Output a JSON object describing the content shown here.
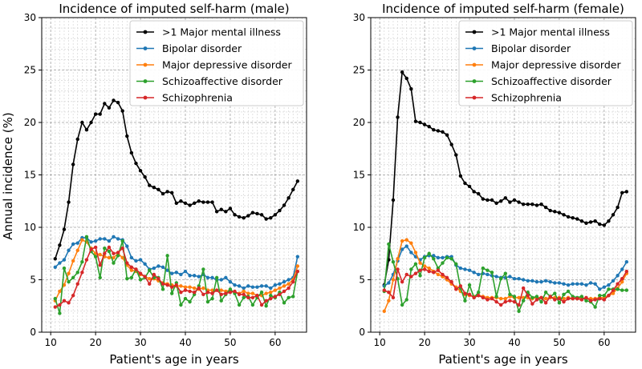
{
  "figure": {
    "ylabel": "Annual incidence (%)"
  },
  "chart_data": [
    {
      "type": "line",
      "title": "Incidence of imputed self-harm (male)",
      "xlabel": "Patient's age in years",
      "ylabel": "Annual incidence (%)",
      "xlim": [
        8,
        67
      ],
      "ylim": [
        0,
        30
      ],
      "xticks": [
        10,
        20,
        30,
        40,
        50,
        60
      ],
      "yticks": [
        0,
        5,
        10,
        15,
        20,
        25,
        30
      ],
      "grid": "major and minor, dashed",
      "legend": "top-right",
      "x": [
        11,
        12,
        13,
        14,
        15,
        16,
        17,
        18,
        19,
        20,
        21,
        22,
        23,
        24,
        25,
        26,
        27,
        28,
        29,
        30,
        31,
        32,
        33,
        34,
        35,
        36,
        37,
        38,
        39,
        40,
        41,
        42,
        43,
        44,
        45,
        46,
        47,
        48,
        49,
        50,
        51,
        52,
        53,
        54,
        55,
        56,
        57,
        58,
        59,
        60,
        61,
        62,
        63,
        64,
        65
      ],
      "series": [
        {
          "name": ">1 Major mental illness",
          "color": "#000000",
          "values": [
            7.0,
            8.3,
            9.8,
            12.4,
            16.0,
            18.4,
            20.0,
            19.3,
            20.0,
            20.8,
            20.8,
            21.8,
            21.4,
            22.1,
            21.9,
            21.1,
            18.7,
            17.1,
            16.1,
            15.4,
            14.8,
            14.0,
            13.8,
            13.6,
            13.2,
            13.4,
            13.3,
            12.3,
            12.5,
            12.3,
            12.1,
            12.3,
            12.5,
            12.4,
            12.4,
            12.4,
            11.5,
            11.7,
            11.5,
            11.8,
            11.2,
            11.0,
            10.9,
            11.1,
            11.4,
            11.3,
            11.2,
            10.8,
            10.9,
            11.2,
            11.6,
            12.1,
            12.8,
            13.6,
            14.4
          ]
        },
        {
          "name": "Bipolar disorder",
          "color": "#1f77b4",
          "values": [
            6.2,
            6.6,
            6.9,
            7.8,
            8.4,
            8.5,
            9.0,
            9.0,
            8.6,
            8.7,
            8.9,
            8.9,
            8.7,
            9.1,
            8.9,
            8.8,
            8.2,
            7.1,
            6.8,
            6.9,
            6.5,
            6.0,
            6.1,
            6.3,
            6.2,
            5.9,
            5.6,
            5.7,
            5.5,
            5.8,
            5.4,
            5.4,
            5.3,
            5.5,
            5.2,
            5.2,
            5.0,
            5.0,
            5.2,
            4.8,
            4.5,
            4.4,
            4.2,
            4.4,
            4.3,
            4.3,
            4.4,
            4.4,
            4.2,
            4.5,
            4.6,
            4.8,
            5.0,
            5.2,
            7.2
          ]
        },
        {
          "name": "Major depressive disorder",
          "color": "#ff7f0e",
          "values": [
            3.0,
            3.9,
            4.5,
            5.6,
            6.8,
            7.8,
            8.8,
            8.6,
            8.0,
            7.5,
            7.4,
            7.2,
            7.1,
            7.1,
            7.5,
            7.1,
            6.4,
            5.9,
            5.8,
            5.5,
            5.3,
            5.1,
            5.1,
            4.9,
            4.7,
            4.6,
            4.5,
            4.4,
            4.4,
            4.3,
            4.3,
            4.2,
            4.1,
            4.2,
            4.0,
            4.0,
            4.0,
            4.0,
            3.9,
            4.0,
            3.8,
            3.7,
            3.9,
            3.7,
            3.7,
            3.5,
            3.5,
            3.7,
            3.8,
            4.0,
            4.2,
            4.4,
            4.6,
            5.0,
            6.3
          ]
        },
        {
          "name": "Schizoaffective disorder",
          "color": "#2ca02c",
          "values": [
            3.2,
            1.8,
            6.1,
            4.8,
            5.2,
            5.7,
            6.7,
            9.1,
            7.7,
            7.2,
            5.2,
            8.0,
            7.7,
            6.6,
            7.3,
            8.7,
            5.1,
            5.2,
            6.0,
            5.0,
            5.2,
            5.9,
            5.2,
            5.2,
            4.1,
            7.3,
            3.7,
            4.7,
            2.6,
            3.2,
            2.9,
            3.6,
            4.4,
            6.0,
            2.9,
            3.2,
            5.2,
            3.0,
            3.6,
            4.1,
            3.7,
            2.6,
            3.3,
            3.4,
            2.6,
            3.3,
            3.8,
            2.5,
            3.5,
            3.3,
            3.8,
            2.8,
            3.3,
            3.4,
            5.8
          ]
        },
        {
          "name": "Schizophrenia",
          "color": "#d62728",
          "values": [
            2.4,
            2.6,
            3.0,
            2.8,
            3.5,
            4.6,
            5.7,
            6.9,
            7.9,
            8.1,
            6.4,
            7.5,
            8.1,
            7.5,
            7.6,
            8.0,
            6.6,
            6.2,
            6.0,
            5.6,
            5.3,
            4.6,
            5.5,
            5.1,
            4.6,
            4.5,
            4.3,
            4.5,
            3.8,
            4.0,
            3.9,
            3.8,
            4.2,
            3.6,
            3.8,
            3.7,
            4.0,
            3.6,
            3.7,
            3.8,
            3.9,
            3.6,
            3.6,
            3.3,
            3.3,
            3.5,
            2.6,
            3.0,
            3.2,
            3.4,
            3.6,
            3.9,
            4.2,
            4.8,
            5.8
          ]
        }
      ]
    },
    {
      "type": "line",
      "title": "Incidence of imputed self-harm (female)",
      "xlabel": "Patient's age in years",
      "ylabel": "",
      "xlim": [
        8,
        67
      ],
      "ylim": [
        0,
        30
      ],
      "xticks": [
        10,
        20,
        30,
        40,
        50,
        60
      ],
      "yticks": [
        0,
        5,
        10,
        15,
        20,
        25,
        30
      ],
      "grid": "major and minor, dashed",
      "legend": "top-right",
      "x": [
        11,
        12,
        13,
        14,
        15,
        16,
        17,
        18,
        19,
        20,
        21,
        22,
        23,
        24,
        25,
        26,
        27,
        28,
        29,
        30,
        31,
        32,
        33,
        34,
        35,
        36,
        37,
        38,
        39,
        40,
        41,
        42,
        43,
        44,
        45,
        46,
        47,
        48,
        49,
        50,
        51,
        52,
        53,
        54,
        55,
        56,
        57,
        58,
        59,
        60,
        61,
        62,
        63,
        64,
        65
      ],
      "series": [
        {
          "name": ">1 Major mental illness",
          "color": "#000000",
          "values": [
            4.5,
            6.9,
            12.6,
            20.5,
            24.8,
            24.2,
            23.2,
            20.1,
            20.0,
            19.8,
            19.6,
            19.3,
            19.2,
            19.1,
            18.8,
            17.9,
            16.9,
            14.9,
            14.2,
            13.9,
            13.4,
            13.2,
            12.7,
            12.6,
            12.6,
            12.3,
            12.5,
            12.8,
            12.4,
            12.6,
            12.4,
            12.2,
            12.2,
            12.2,
            12.1,
            12.2,
            11.9,
            11.6,
            11.5,
            11.4,
            11.2,
            11.0,
            10.9,
            10.8,
            10.6,
            10.4,
            10.5,
            10.6,
            10.3,
            10.2,
            10.6,
            11.2,
            11.9,
            13.3,
            13.4
          ]
        },
        {
          "name": "Bipolar disorder",
          "color": "#1f77b4",
          "values": [
            4.4,
            4.7,
            5.5,
            6.8,
            7.9,
            8.2,
            7.6,
            7.2,
            6.9,
            7.2,
            7.3,
            7.3,
            7.1,
            7.1,
            7.2,
            7.2,
            6.4,
            6.1,
            6.0,
            5.9,
            5.7,
            5.5,
            5.6,
            5.5,
            5.4,
            5.3,
            5.2,
            5.2,
            5.3,
            5.1,
            5.1,
            5.0,
            4.9,
            4.9,
            4.8,
            4.8,
            4.9,
            4.8,
            4.7,
            4.7,
            4.6,
            4.5,
            4.6,
            4.6,
            4.6,
            4.5,
            4.7,
            4.6,
            4.1,
            4.3,
            4.5,
            4.9,
            5.4,
            6.0,
            6.7
          ]
        },
        {
          "name": "Major depressive disorder",
          "color": "#ff7f0e",
          "values": [
            2.0,
            3.0,
            5.0,
            7.0,
            8.7,
            8.8,
            8.5,
            7.6,
            6.6,
            6.3,
            6.1,
            5.8,
            5.5,
            5.3,
            5.0,
            4.6,
            4.3,
            3.9,
            3.6,
            3.5,
            3.4,
            3.5,
            3.4,
            3.3,
            3.3,
            3.3,
            3.2,
            3.2,
            3.4,
            3.3,
            3.3,
            3.3,
            3.3,
            3.2,
            3.3,
            3.3,
            3.2,
            3.3,
            3.3,
            3.3,
            3.2,
            3.3,
            3.2,
            3.2,
            3.3,
            3.2,
            3.2,
            3.2,
            3.3,
            3.3,
            3.5,
            3.7,
            4.2,
            4.8,
            5.6
          ]
        },
        {
          "name": "Schizoaffective disorder",
          "color": "#2ca02c",
          "values": [
            3.9,
            8.4,
            6.7,
            5.1,
            2.6,
            3.1,
            6.0,
            6.5,
            5.4,
            7.1,
            7.5,
            7.0,
            6.1,
            6.6,
            7.1,
            7.0,
            6.5,
            4.2,
            3.0,
            4.5,
            3.3,
            3.8,
            6.1,
            5.9,
            5.7,
            3.4,
            5.1,
            5.6,
            3.6,
            3.4,
            2.0,
            3.0,
            3.8,
            3.3,
            3.4,
            2.9,
            3.8,
            3.4,
            3.7,
            2.8,
            3.6,
            3.9,
            3.4,
            3.3,
            3.4,
            3.0,
            2.9,
            2.4,
            3.5,
            3.5,
            4.1,
            4.1,
            4.1,
            4.0,
            4.0
          ]
        },
        {
          "name": "Schizophrenia",
          "color": "#d62728",
          "values": [
            4.0,
            3.8,
            3.3,
            6.0,
            4.8,
            5.5,
            5.3,
            5.6,
            5.9,
            6.0,
            5.8,
            5.7,
            5.9,
            5.5,
            5.2,
            4.8,
            4.1,
            4.4,
            3.7,
            3.6,
            3.3,
            3.5,
            3.3,
            3.1,
            3.2,
            2.9,
            2.6,
            2.9,
            3.0,
            2.9,
            2.6,
            4.2,
            3.5,
            2.7,
            3.1,
            3.3,
            2.8,
            3.4,
            3.1,
            3.2,
            2.9,
            3.2,
            3.2,
            3.2,
            3.1,
            3.3,
            3.0,
            3.1,
            3.2,
            3.1,
            3.5,
            4.0,
            4.6,
            5.1,
            5.8
          ]
        }
      ]
    }
  ]
}
